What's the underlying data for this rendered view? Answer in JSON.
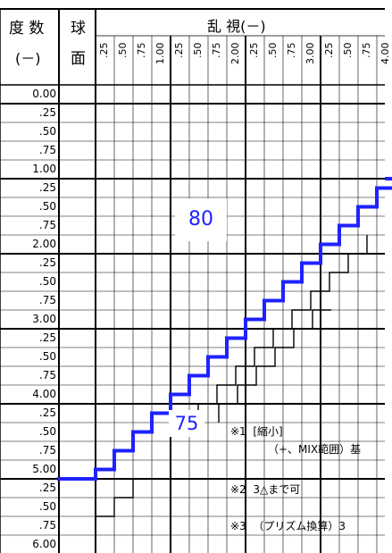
{
  "title_bar": "",
  "header": {
    "degree_label": "度 数",
    "degree_unit": "(－)",
    "sphere_label_top": "球",
    "sphere_label_bottom": "面",
    "astig_label": "乱 視(－)"
  },
  "columns": [
    ".25",
    ".50",
    ".75",
    "1.00",
    ".25",
    ".50",
    ".75",
    "2.00",
    ".25",
    ".50",
    ".75",
    "3.00",
    ".25",
    ".50",
    ".75",
    "4.00"
  ],
  "rows": [
    "0.00",
    ".25",
    ".50",
    ".75",
    "1.00",
    ".25",
    ".50",
    ".75",
    "2.00",
    ".25",
    ".50",
    ".75",
    "3.00",
    ".25",
    ".50",
    ".75",
    "4.00",
    ".25",
    ".50",
    ".75",
    "5.00",
    ".25",
    ".50",
    ".75",
    "6.00"
  ],
  "region_labels": {
    "upper": "80",
    "lower": "75"
  },
  "notes": [
    {
      "mark": "※1",
      "text": "[縮小]"
    },
    {
      "mark": "",
      "text": "（+、MIX範囲）基"
    },
    {
      "mark": "※2",
      "text": "3△まで可"
    },
    {
      "mark": "※3",
      "text": "（プリズム換算）3"
    }
  ],
  "colors": {
    "boundary": "#1e22ff",
    "grid": "#000000",
    "label_box_text": "#1e22ff"
  }
}
